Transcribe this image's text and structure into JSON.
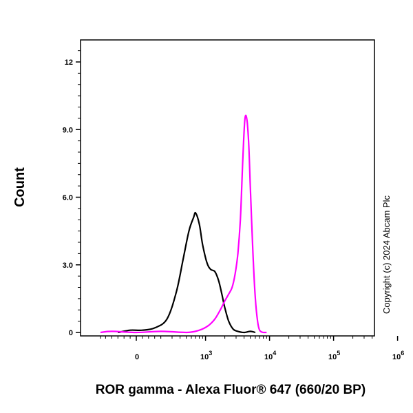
{
  "chart_data": {
    "type": "line",
    "title": "",
    "xlabel": "ROR gamma - Alexa Fluor® 647 (660/20 BP)",
    "ylabel": "Count",
    "x_scale": "biexponential (log with linear region around 0)",
    "y_ticks": [
      "0",
      "3.0",
      "6.0",
      "9.0",
      "12"
    ],
    "x_ticks": [
      {
        "label": "0",
        "value": 0
      },
      {
        "label": "10",
        "sup": "3",
        "value": 1000
      },
      {
        "label": "10",
        "sup": "4",
        "value": 10000
      },
      {
        "label": "10",
        "sup": "5",
        "value": 100000
      },
      {
        "label": "10",
        "sup": "6",
        "value": 1000000
      }
    ],
    "ylim": [
      0,
      13
    ],
    "grid": false,
    "legend": "none",
    "series": [
      {
        "color": "#000000",
        "x": [
          -150,
          -50,
          50,
          150,
          250,
          350,
          450,
          550,
          650,
          700,
          800,
          900,
          1050,
          1200,
          1400,
          1600,
          1800,
          2000,
          2300,
          2700,
          3200,
          4000,
          5000,
          6000
        ],
        "y": [
          0,
          0.1,
          0.1,
          0.2,
          0.6,
          1.8,
          3.3,
          4.5,
          5.1,
          5.3,
          4.8,
          3.9,
          3.1,
          2.8,
          2.7,
          2.3,
          1.7,
          1.1,
          0.5,
          0.15,
          0.05,
          0,
          0.05,
          0
        ]
      },
      {
        "color": "#ff00ff",
        "x": [
          -300,
          -200,
          0,
          200,
          500,
          800,
          1100,
          1400,
          1700,
          2000,
          2300,
          2600,
          2900,
          3200,
          3500,
          3800,
          4100,
          4400,
          4700,
          5000,
          5500,
          6000,
          6500,
          7000,
          8000,
          9000
        ],
        "y": [
          0,
          0.05,
          0,
          0.05,
          0,
          0.1,
          0.3,
          0.6,
          1.0,
          1.4,
          1.7,
          2.0,
          2.6,
          3.5,
          5.0,
          7.5,
          9.4,
          9.5,
          8.5,
          6.5,
          3.5,
          1.5,
          0.5,
          0.1,
          0,
          0
        ]
      }
    ]
  },
  "watermark": "Copyright (c) 2024 Abcam Plc"
}
